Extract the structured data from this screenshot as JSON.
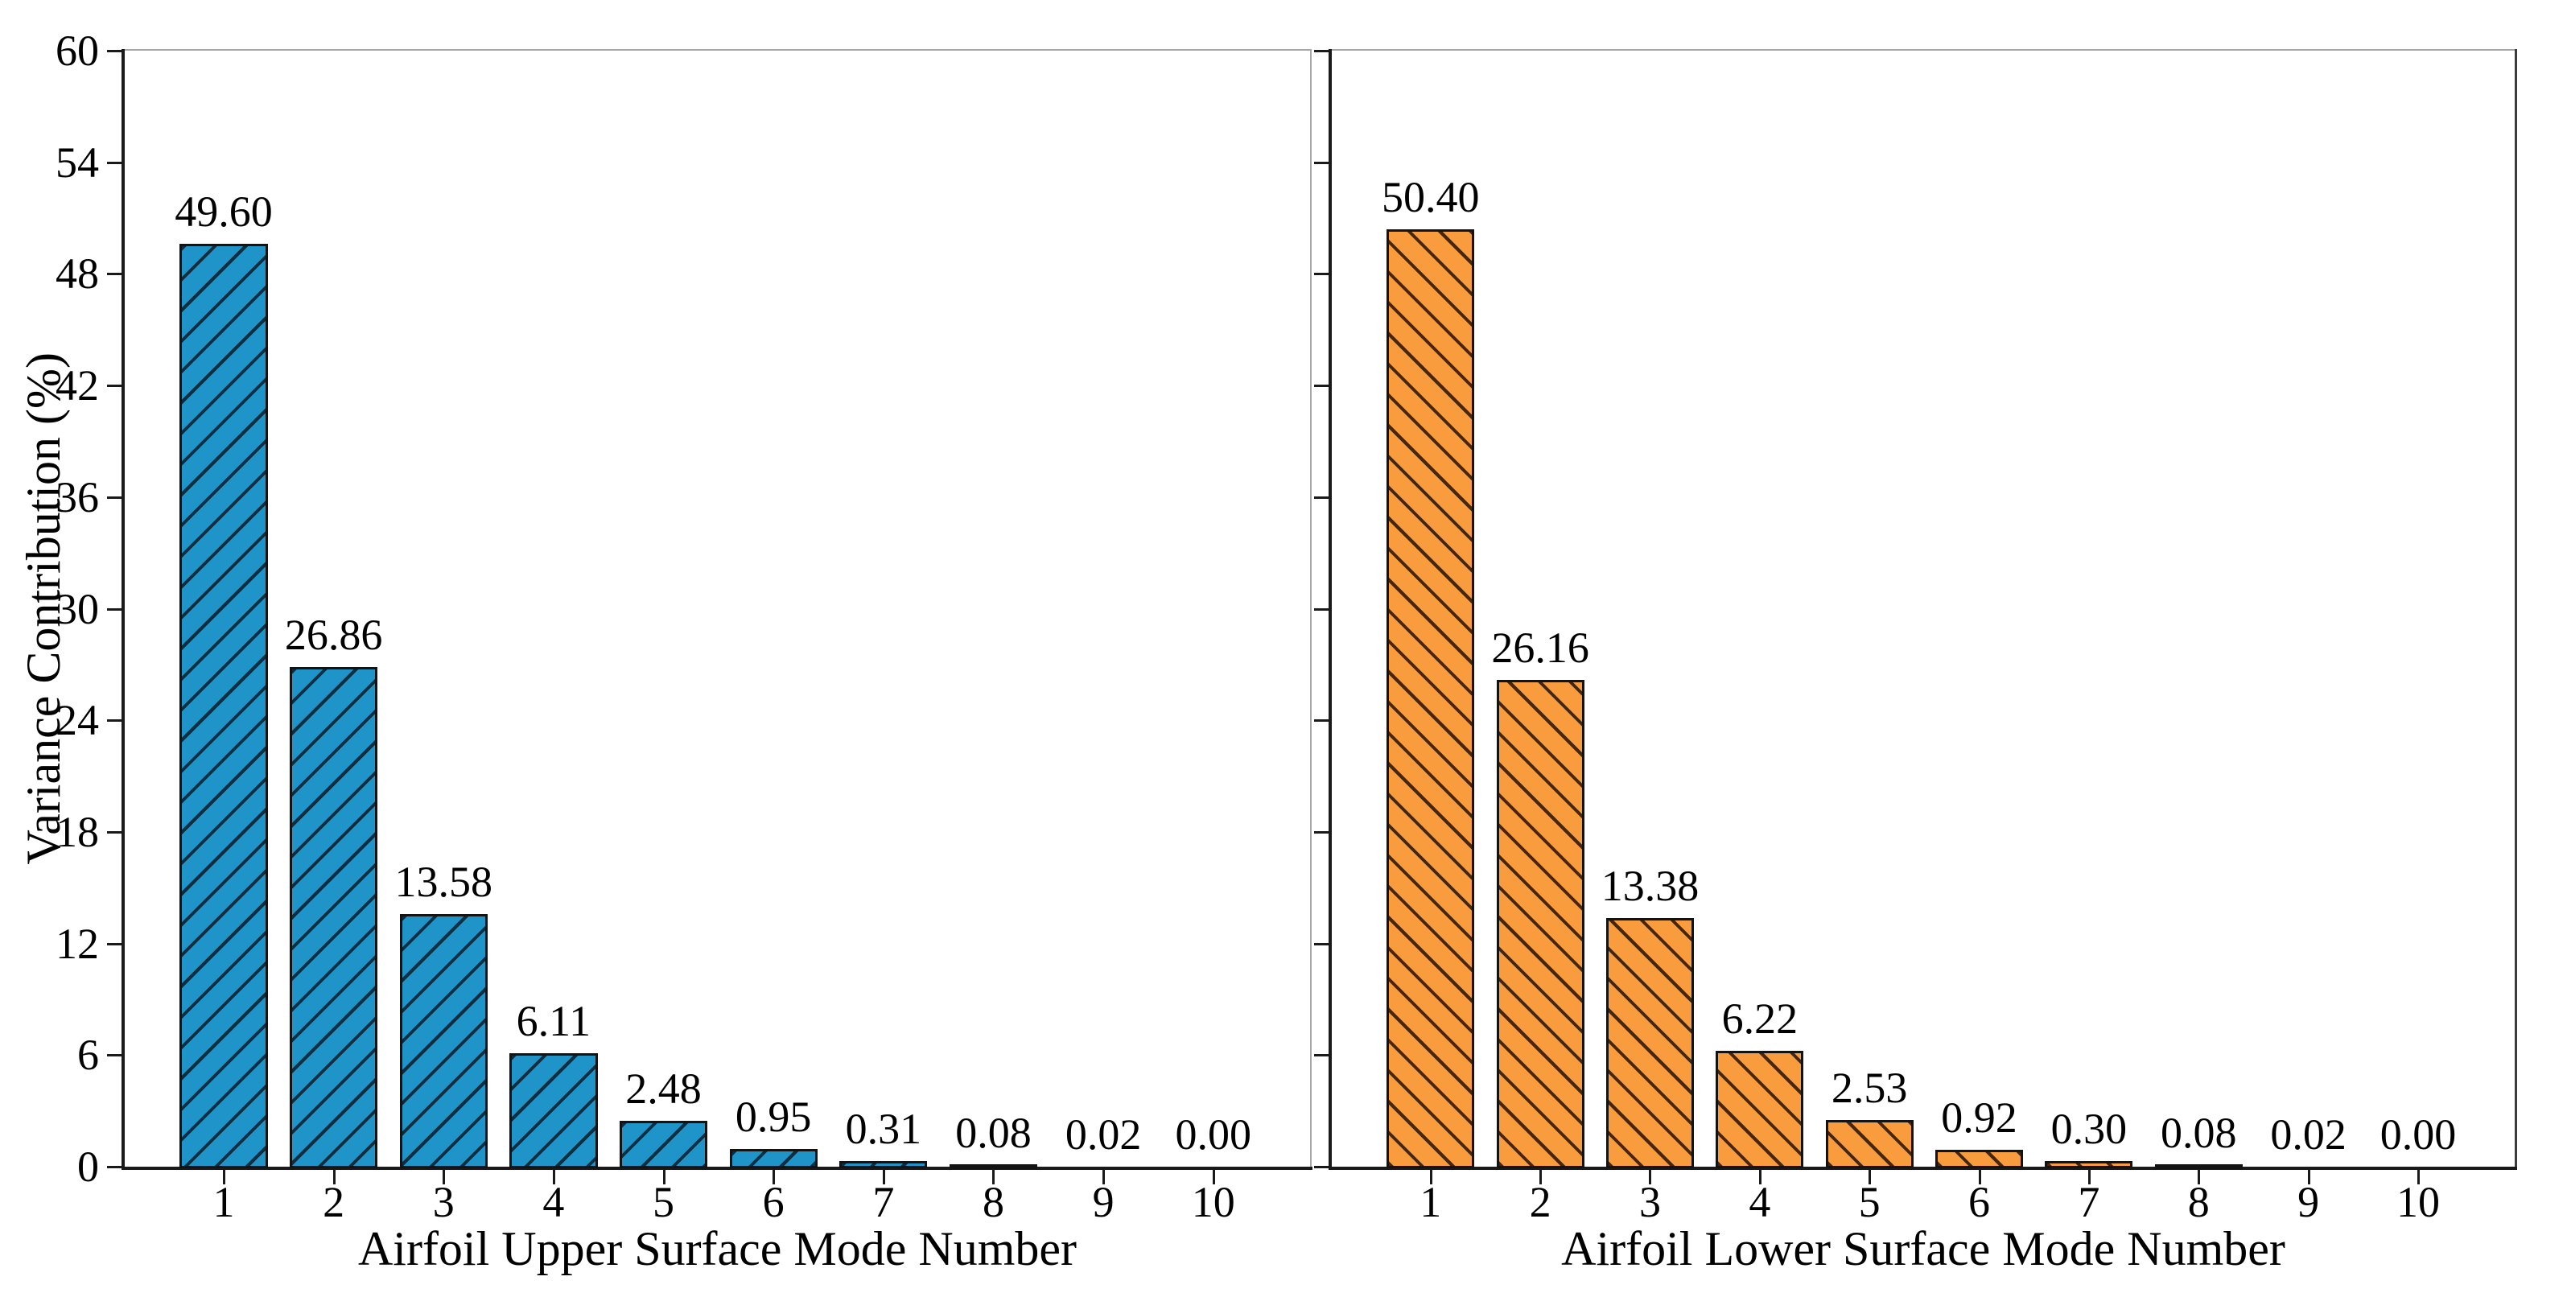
{
  "figure": {
    "background": "#ffffff",
    "axis_color": "#1a1a1a",
    "minor_spine_color": "#a8a8a8",
    "text_color": "#000000"
  },
  "shared": {
    "ylabel": "Variance Contribution (%)",
    "ylim": [
      0,
      60
    ],
    "yticks": [
      0,
      6,
      12,
      18,
      24,
      30,
      36,
      42,
      48,
      54,
      60
    ],
    "ytick_labels": [
      "0",
      "6",
      "12",
      "18",
      "24",
      "30",
      "36",
      "42",
      "48",
      "54",
      "60"
    ],
    "grid": "off",
    "legend": "none"
  },
  "chart_data": [
    {
      "type": "bar",
      "panel": "upper-surface",
      "xlabel": "Airfoil Upper Surface Mode Number",
      "ylabel": "Variance Contribution (%)",
      "categories": [
        "1",
        "2",
        "3",
        "4",
        "5",
        "6",
        "7",
        "8",
        "9",
        "10"
      ],
      "values": [
        49.6,
        26.86,
        13.58,
        6.11,
        2.48,
        0.95,
        0.31,
        0.08,
        0.02,
        0.0
      ],
      "value_labels": [
        "49.60",
        "26.86",
        "13.58",
        "6.11",
        "2.48",
        "0.95",
        "0.31",
        "0.08",
        "0.02",
        "0.00"
      ],
      "ylim": [
        0,
        60
      ],
      "bar_color": "#1e94c8",
      "hatch": "/",
      "hatch_color": "#0d2e40",
      "edge_color": "#131313",
      "ytick_labels_visible": true,
      "right_spine_color": "#a8a8a8"
    },
    {
      "type": "bar",
      "panel": "lower-surface",
      "xlabel": "Airfoil Lower Surface Mode Number",
      "ylabel": "",
      "categories": [
        "1",
        "2",
        "3",
        "4",
        "5",
        "6",
        "7",
        "8",
        "9",
        "10"
      ],
      "values": [
        50.4,
        26.16,
        13.38,
        6.22,
        2.53,
        0.92,
        0.3,
        0.08,
        0.02,
        0.0
      ],
      "value_labels": [
        "50.40",
        "26.16",
        "13.38",
        "6.22",
        "2.53",
        "0.92",
        "0.30",
        "0.08",
        "0.02",
        "0.00"
      ],
      "ylim": [
        0,
        60
      ],
      "bar_color": "#f99c3e",
      "hatch": "\\",
      "hatch_color": "#46260d",
      "edge_color": "#131313",
      "ytick_labels_visible": false,
      "right_spine_color": "#3c3c3c"
    }
  ]
}
